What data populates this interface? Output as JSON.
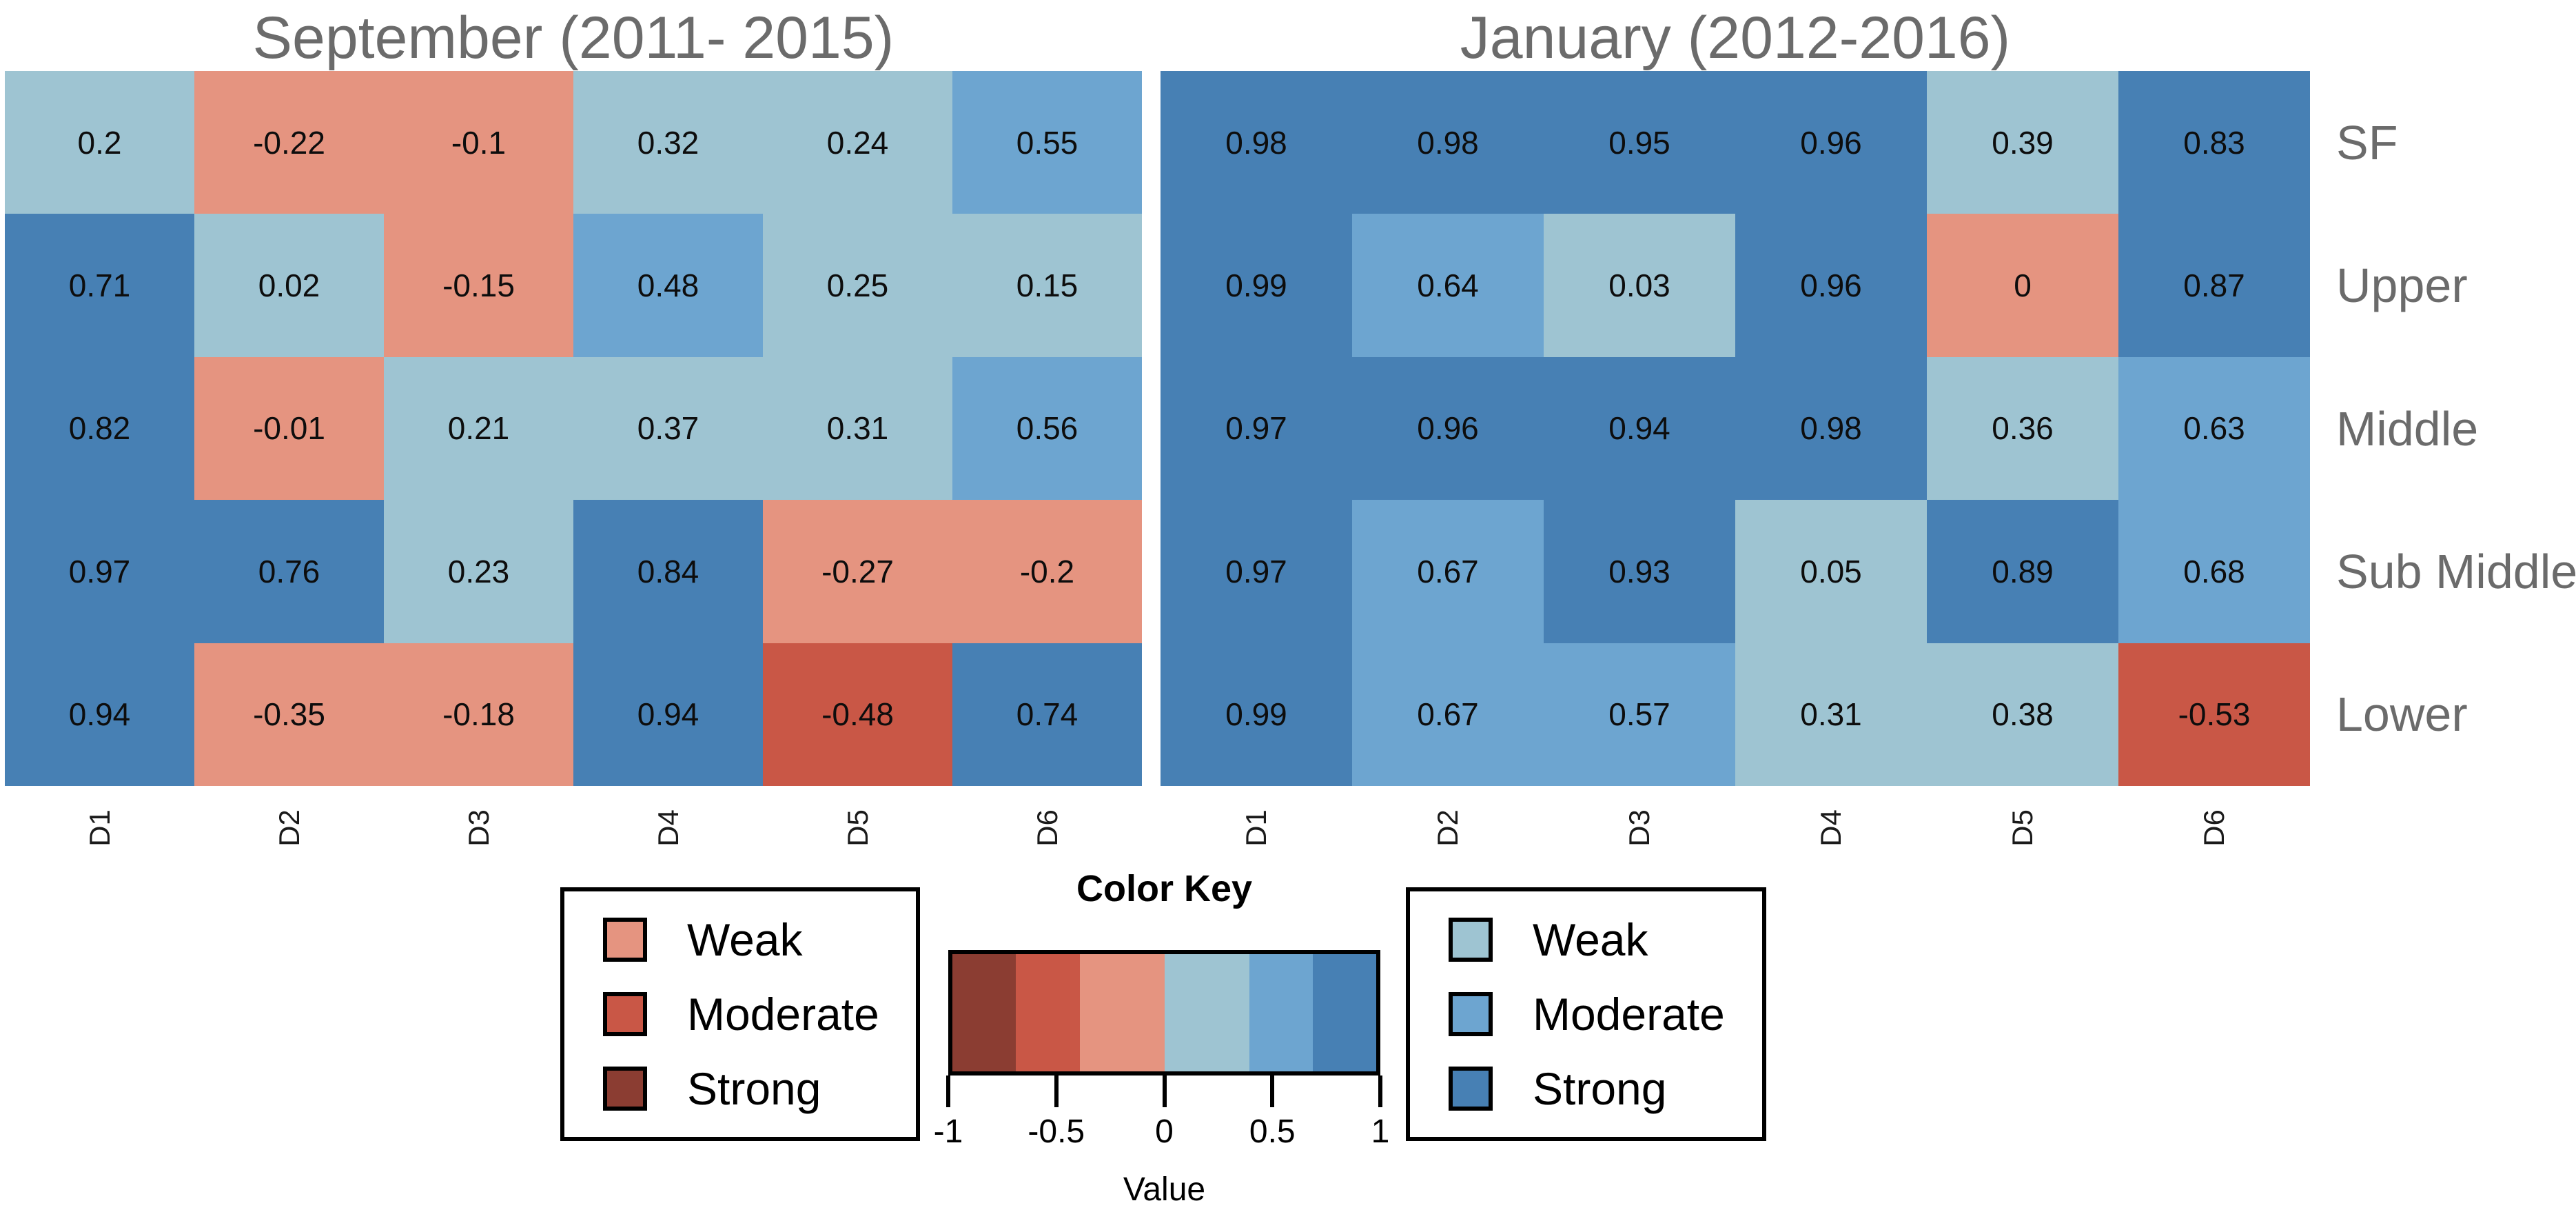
{
  "chart_data": [
    {
      "type": "heatmap",
      "title": "September (2011- 2015)",
      "columns": [
        "D1",
        "D2",
        "D3",
        "D4",
        "D5",
        "D6"
      ],
      "rows": [
        "SF",
        "Upper",
        "Middle",
        "Sub Middle",
        "Lower"
      ],
      "values": [
        [
          0.2,
          -0.22,
          -0.1,
          0.32,
          0.24,
          0.55
        ],
        [
          0.71,
          0.02,
          -0.15,
          0.48,
          0.25,
          0.15
        ],
        [
          0.82,
          -0.01,
          0.21,
          0.37,
          0.31,
          0.56
        ],
        [
          0.97,
          0.76,
          0.23,
          0.84,
          -0.27,
          -0.2
        ],
        [
          0.94,
          -0.35,
          -0.18,
          0.94,
          -0.48,
          0.74
        ]
      ]
    },
    {
      "type": "heatmap",
      "title": "January (2012-2016)",
      "columns": [
        "D1",
        "D2",
        "D3",
        "D4",
        "D5",
        "D6"
      ],
      "rows": [
        "SF",
        "Upper",
        "Middle",
        "Sub Middle",
        "Lower"
      ],
      "values": [
        [
          0.98,
          0.98,
          0.95,
          0.96,
          0.39,
          0.83
        ],
        [
          0.99,
          0.64,
          0.03,
          0.96,
          0,
          0.87
        ],
        [
          0.97,
          0.96,
          0.94,
          0.98,
          0.36,
          0.63
        ],
        [
          0.97,
          0.67,
          0.93,
          0.05,
          0.89,
          0.68
        ],
        [
          0.99,
          0.67,
          0.57,
          0.31,
          0.38,
          -0.53
        ]
      ]
    }
  ],
  "color_key": {
    "title": "Color Key",
    "xlabel": "Value",
    "ticks": [
      "-1",
      "-0.5",
      "0",
      "0.5",
      "1"
    ],
    "tick_values": [
      -1,
      -0.5,
      0,
      0.5,
      1
    ],
    "range": [
      -1,
      1
    ],
    "breaks": [
      -1,
      -0.7,
      -0.4,
      0,
      0.4,
      0.7,
      1
    ],
    "segment_colors": [
      "#8b3d32",
      "#c95746",
      "#e59480",
      "#9ec4d2",
      "#6da5d0",
      "#4780b4"
    ]
  },
  "legend_negative": {
    "items": [
      {
        "label": "Weak",
        "color": "#e59480"
      },
      {
        "label": "Moderate",
        "color": "#c95746"
      },
      {
        "label": "Strong",
        "color": "#8b3d32"
      }
    ]
  },
  "legend_positive": {
    "items": [
      {
        "label": "Weak",
        "color": "#9ec4d2"
      },
      {
        "label": "Moderate",
        "color": "#6da5d0"
      },
      {
        "label": "Strong",
        "color": "#4780b4"
      }
    ]
  }
}
